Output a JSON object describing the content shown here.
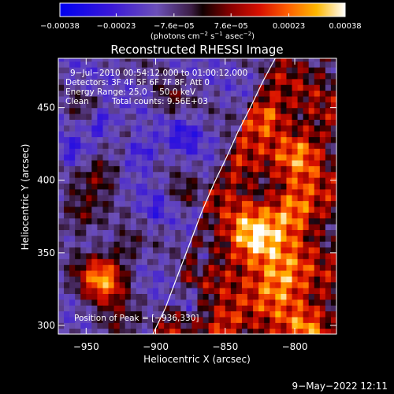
{
  "chart_data": {
    "type": "heatmap",
    "title": "Reconstructed RHESSI Image",
    "xlabel": "Heliocentric X (arcsec)",
    "ylabel": "Heliocentric Y (arcsec)",
    "xlim": [
      -970,
      -770
    ],
    "ylim": [
      294,
      484
    ],
    "xticks": [
      -950,
      -900,
      -850,
      -800
    ],
    "xtick_labels": [
      "−950",
      "−900",
      "−850",
      "−800"
    ],
    "yticks": [
      300,
      350,
      400,
      450
    ],
    "ytick_labels": [
      "300",
      "350",
      "400",
      "450"
    ],
    "colorbar": {
      "range": [
        -0.00038,
        0.00038
      ],
      "ticks": [
        -0.00038,
        -0.00023,
        -7.6e-05,
        7.6e-05,
        0.00023,
        0.00038
      ],
      "tick_labels": [
        "−0.00038",
        "−0.00023",
        "−7.6e−05",
        "7.6e−05",
        "0.00023",
        "0.00038"
      ],
      "label": {
        "prefix": "(photons cm",
        "exp1": "−2",
        "mid1": " s",
        "exp2": "−1",
        "mid2": " asec",
        "exp3": "−2",
        "suffix": ")"
      },
      "colormap": "blue-red-yellow-white"
    },
    "limb": [
      [
        -902,
        294
      ],
      [
        -893,
        312
      ],
      [
        -884,
        335
      ],
      [
        -874,
        360
      ],
      [
        -867,
        378
      ],
      [
        -858,
        398
      ],
      [
        -849,
        416
      ],
      [
        -841,
        433
      ],
      [
        -832,
        450
      ],
      [
        -823,
        468
      ],
      [
        -814,
        484
      ]
    ],
    "peak": [
      -936,
      330
    ],
    "hotspots": [
      {
        "x": -938,
        "y": 333,
        "r": 12,
        "v": 0.00038
      },
      {
        "x": -830,
        "y": 360,
        "r": 14,
        "v": 0.00032
      },
      {
        "x": -810,
        "y": 330,
        "r": 14,
        "v": 0.0003
      },
      {
        "x": -800,
        "y": 380,
        "r": 12,
        "v": 0.00028
      },
      {
        "x": -820,
        "y": 445,
        "r": 10,
        "v": 0.00024
      },
      {
        "x": -795,
        "y": 420,
        "r": 12,
        "v": 0.00022
      },
      {
        "x": -790,
        "y": 300,
        "r": 12,
        "v": 0.0002
      },
      {
        "x": -850,
        "y": 300,
        "r": 10,
        "v": 0.0002
      },
      {
        "x": -840,
        "y": 410,
        "r": 10,
        "v": 0.00015
      },
      {
        "x": -940,
        "y": 405,
        "r": 10,
        "v": 0.00018
      },
      {
        "x": -955,
        "y": 375,
        "r": 10,
        "v": 0.00015
      },
      {
        "x": -930,
        "y": 300,
        "r": 10,
        "v": 0.00014
      },
      {
        "x": -890,
        "y": 455,
        "r": 8,
        "v": 0.00012
      },
      {
        "x": -880,
        "y": 390,
        "r": 8,
        "v": 0.00012
      },
      {
        "x": -920,
        "y": 355,
        "r": 7,
        "v": 0.0001
      },
      {
        "x": -950,
        "y": 450,
        "r": 8,
        "v": 8e-05
      },
      {
        "x": -940,
        "y": 440,
        "r": 7,
        "v": -0.00018
      },
      {
        "x": -910,
        "y": 420,
        "r": 8,
        "v": -0.00015
      },
      {
        "x": -880,
        "y": 430,
        "r": 9,
        "v": -0.00012
      },
      {
        "x": -900,
        "y": 380,
        "r": 7,
        "v": -0.0001
      },
      {
        "x": -868,
        "y": 345,
        "r": 6,
        "v": -0.00016
      },
      {
        "x": -878,
        "y": 318,
        "r": 6,
        "v": -0.00014
      },
      {
        "x": -960,
        "y": 420,
        "r": 7,
        "v": -0.0001
      }
    ]
  },
  "annotations": {
    "time_range": "9−Jul−2010 00:54:12.000 to 01:00:12.000",
    "detectors": "Detectors: 3F 4F 5F 6F 7F 8F, Att 0",
    "energy_range": "Energy Range: 25.0 − 50.0 keV",
    "method": "Clean",
    "total_counts": "Total counts: 9.56E+03",
    "peak_position": "Position of Peak = [−936,330]"
  },
  "footer": {
    "timestamp": "9−May−2022 12:11"
  },
  "colors": {
    "background": "#000000",
    "foreground": "#ffffff",
    "limb": "#ffffff"
  }
}
